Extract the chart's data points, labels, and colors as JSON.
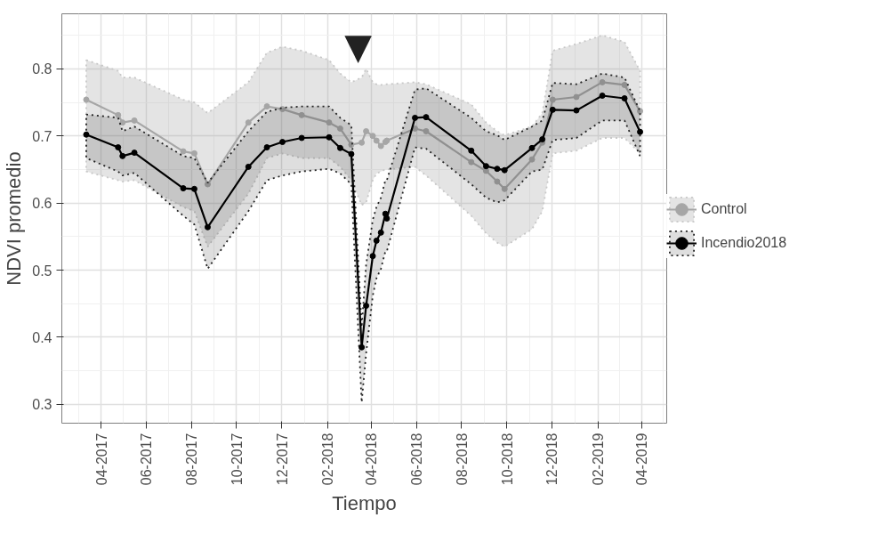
{
  "chart_data": {
    "type": "line",
    "xlabel": "Tiempo",
    "ylabel": "NDVI promedio",
    "x": [
      "2017-03-12",
      "2017-04-24",
      "2017-04-30",
      "2017-05-16",
      "2017-07-21",
      "2017-08-05",
      "2017-08-23",
      "2017-10-17",
      "2017-11-11",
      "2017-12-02",
      "2017-12-28",
      "2018-02-03",
      "2018-02-18",
      "2018-03-05",
      "2018-03-19",
      "2018-03-25",
      "2018-04-03",
      "2018-04-08",
      "2018-04-14",
      "2018-04-20",
      "2018-04-22",
      "2018-05-30",
      "2018-06-14",
      "2018-08-14",
      "2018-09-03",
      "2018-09-18",
      "2018-09-28",
      "2018-11-04",
      "2018-11-18",
      "2018-12-02",
      "2019-01-03",
      "2019-02-07",
      "2019-03-09",
      "2019-03-30"
    ],
    "series": [
      {
        "name": "Control",
        "color": "#a6a6a6",
        "values": [
          0.754,
          0.731,
          0.72,
          0.723,
          0.677,
          0.674,
          0.628,
          0.72,
          0.744,
          0.74,
          0.731,
          0.72,
          0.711,
          0.687,
          0.69,
          0.707,
          0.7,
          0.693,
          0.685,
          0.691,
          0.693,
          0.711,
          0.707,
          0.661,
          0.648,
          0.632,
          0.621,
          0.665,
          0.69,
          0.754,
          0.758,
          0.78,
          0.776,
          0.737
        ],
        "lower": [
          0.647,
          0.634,
          0.632,
          0.634,
          0.594,
          0.588,
          0.535,
          0.614,
          0.667,
          0.674,
          0.667,
          0.667,
          0.654,
          0.634,
          0.597,
          0.601,
          0.634,
          0.644,
          0.647,
          0.65,
          0.65,
          0.654,
          0.641,
          0.581,
          0.555,
          0.541,
          0.535,
          0.561,
          0.588,
          0.674,
          0.678,
          0.697,
          0.697,
          0.674
        ],
        "upper": [
          0.813,
          0.797,
          0.787,
          0.787,
          0.754,
          0.75,
          0.734,
          0.78,
          0.824,
          0.833,
          0.827,
          0.813,
          0.793,
          0.78,
          0.787,
          0.8,
          0.78,
          0.777,
          0.776,
          0.777,
          0.777,
          0.78,
          0.777,
          0.747,
          0.72,
          0.707,
          0.701,
          0.714,
          0.734,
          0.827,
          0.837,
          0.85,
          0.84,
          0.797
        ]
      },
      {
        "name": "Incendio2018",
        "color": "#000000",
        "values": [
          0.702,
          0.683,
          0.67,
          0.675,
          0.622,
          0.621,
          0.564,
          0.654,
          0.683,
          0.691,
          0.697,
          0.698,
          0.682,
          0.673,
          0.385,
          0.447,
          0.521,
          0.544,
          0.556,
          0.584,
          0.577,
          0.727,
          0.728,
          0.678,
          0.655,
          0.651,
          0.649,
          0.682,
          0.695,
          0.739,
          0.738,
          0.76,
          0.756,
          0.706
        ],
        "lower": [
          0.667,
          0.647,
          0.641,
          0.645,
          0.581,
          0.568,
          0.502,
          0.588,
          0.634,
          0.641,
          0.647,
          0.651,
          0.644,
          0.628,
          0.303,
          0.376,
          0.462,
          0.488,
          0.502,
          0.528,
          0.528,
          0.683,
          0.681,
          0.628,
          0.608,
          0.601,
          0.604,
          0.647,
          0.65,
          0.694,
          0.697,
          0.723,
          0.723,
          0.67
        ],
        "upper": [
          0.732,
          0.727,
          0.707,
          0.714,
          0.67,
          0.667,
          0.63,
          0.707,
          0.736,
          0.742,
          0.744,
          0.744,
          0.727,
          0.716,
          0.415,
          0.508,
          0.575,
          0.594,
          0.608,
          0.634,
          0.634,
          0.769,
          0.771,
          0.727,
          0.707,
          0.701,
          0.694,
          0.714,
          0.723,
          0.779,
          0.777,
          0.793,
          0.787,
          0.737
        ]
      }
    ],
    "xlim": [
      "2017-02-07",
      "2019-05-05"
    ],
    "xticks": [
      {
        "value": "2017-04-01",
        "label": "04-2017"
      },
      {
        "value": "2017-06-01",
        "label": "06-2017"
      },
      {
        "value": "2017-08-01",
        "label": "08-2017"
      },
      {
        "value": "2017-10-01",
        "label": "10-2017"
      },
      {
        "value": "2017-12-01",
        "label": "12-2017"
      },
      {
        "value": "2018-02-01",
        "label": "02-2018"
      },
      {
        "value": "2018-04-01",
        "label": "04-2018"
      },
      {
        "value": "2018-06-01",
        "label": "06-2018"
      },
      {
        "value": "2018-08-01",
        "label": "08-2018"
      },
      {
        "value": "2018-10-01",
        "label": "10-2018"
      },
      {
        "value": "2018-12-01",
        "label": "12-2018"
      },
      {
        "value": "2019-02-01",
        "label": "02-2019"
      },
      {
        "value": "2019-04-01",
        "label": "04-2019"
      }
    ],
    "ylim": [
      0.272,
      0.882
    ],
    "yticks": [
      0.3,
      0.4,
      0.5,
      0.6,
      0.7,
      0.8
    ],
    "annotations": [
      "▼"
    ],
    "grid": true,
    "legend": "right",
    "marker": "circle",
    "line_style": "solid"
  }
}
